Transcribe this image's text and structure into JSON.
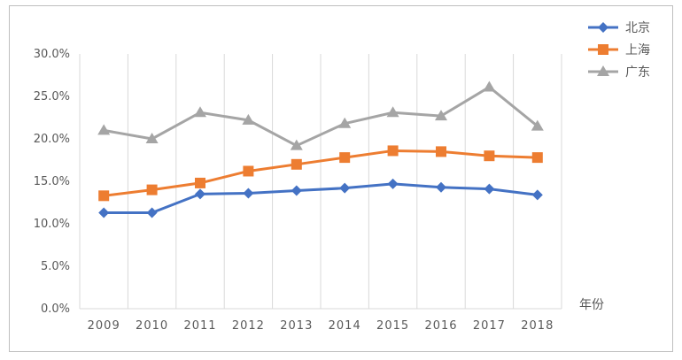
{
  "chart_data": {
    "type": "line",
    "title": "",
    "xlabel": "年份",
    "ylabel": "",
    "categories": [
      "2009",
      "2010",
      "2011",
      "2012",
      "2013",
      "2014",
      "2015",
      "2016",
      "2017",
      "2018"
    ],
    "ylim": [
      0,
      30
    ],
    "yticks": [
      0,
      5,
      10,
      15,
      20,
      25,
      30
    ],
    "ytick_labels": [
      "0.0%",
      "5.0%",
      "10.0%",
      "15.0%",
      "20.0%",
      "25.0%",
      "30.0%"
    ],
    "grid": "vertical",
    "legend_position": "top-right",
    "series": [
      {
        "name": "北京",
        "color": "#4472C4",
        "marker": "diamond",
        "values": [
          11.3,
          11.3,
          13.5,
          13.6,
          13.9,
          14.2,
          14.7,
          14.3,
          14.1,
          13.4
        ]
      },
      {
        "name": "上海",
        "color": "#ED7D31",
        "marker": "square",
        "values": [
          13.3,
          14.0,
          14.8,
          16.2,
          17.0,
          17.8,
          18.6,
          18.5,
          18.0,
          17.8
        ]
      },
      {
        "name": "广东",
        "color": "#A5A5A5",
        "marker": "triangle",
        "values": [
          21.0,
          20.0,
          23.1,
          22.2,
          19.2,
          21.8,
          23.1,
          22.7,
          26.1,
          21.5
        ]
      }
    ]
  }
}
